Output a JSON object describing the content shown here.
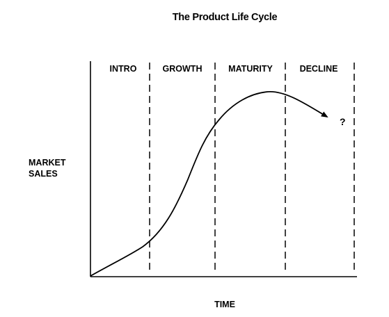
{
  "title": "The Product Life Cycle",
  "y_axis_label_line1": "MARKET",
  "y_axis_label_line2": "SALES",
  "x_axis_label": "TIME",
  "end_marker": "?",
  "stages": [
    {
      "label": "INTRO"
    },
    {
      "label": "GROWTH"
    },
    {
      "label": "MATURITY"
    },
    {
      "label": "DECLINE"
    }
  ],
  "colors": {
    "ink": "#000000",
    "background": "#ffffff"
  },
  "icons": {
    "curve_end": "arrowhead-icon"
  }
}
